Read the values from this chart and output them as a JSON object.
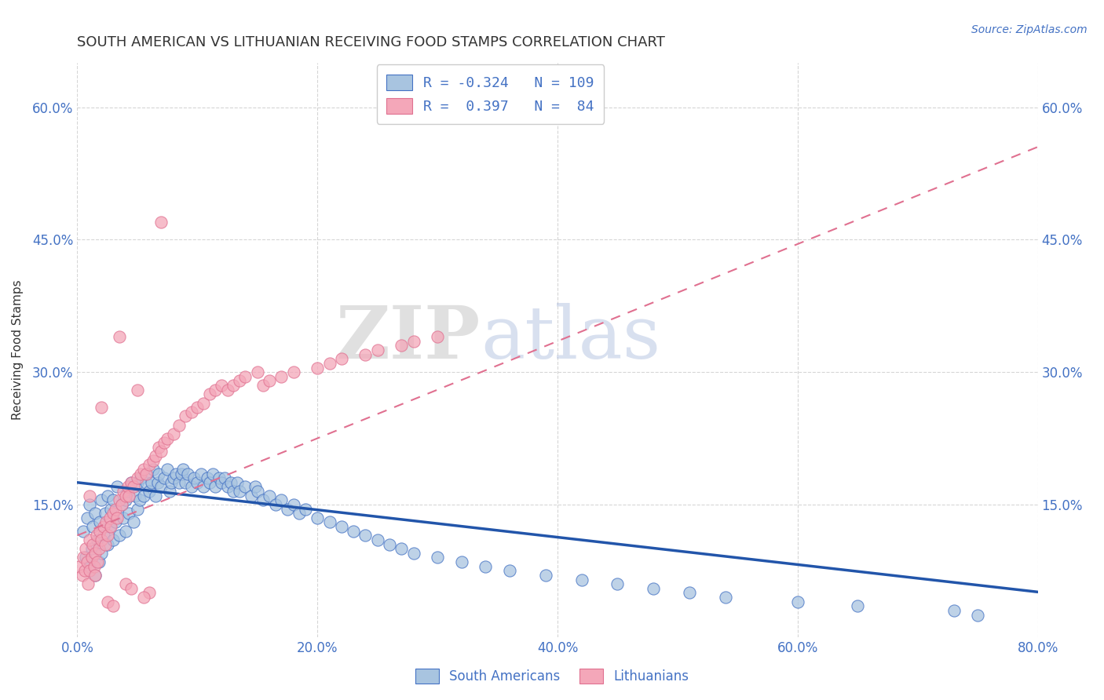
{
  "title": "SOUTH AMERICAN VS LITHUANIAN RECEIVING FOOD STAMPS CORRELATION CHART",
  "source": "Source: ZipAtlas.com",
  "ylabel": "Receiving Food Stamps",
  "ytick_labels": [
    "15.0%",
    "30.0%",
    "45.0%",
    "60.0%"
  ],
  "ytick_values": [
    0.15,
    0.3,
    0.45,
    0.6
  ],
  "xtick_labels": [
    "0.0%",
    "20.0%",
    "40.0%",
    "60.0%",
    "80.0%"
  ],
  "xtick_values": [
    0.0,
    0.2,
    0.4,
    0.6,
    0.8
  ],
  "xmin": 0.0,
  "xmax": 0.8,
  "ymin": 0.0,
  "ymax": 0.65,
  "blue_fill": "#A8C4E0",
  "blue_edge": "#4472C4",
  "pink_fill": "#F4A7B9",
  "pink_edge": "#E07090",
  "blue_line_color": "#2255AA",
  "pink_line_color": "#E07090",
  "axis_label_color": "#4472C4",
  "title_color": "#333333",
  "grid_color": "#CCCCCC",
  "background_color": "#FFFFFF",
  "blue_line_intercept": 0.175,
  "blue_line_slope": -0.155,
  "pink_line_intercept": 0.115,
  "pink_line_slope": 0.55,
  "blue_scatter_x": [
    0.005,
    0.007,
    0.008,
    0.01,
    0.01,
    0.012,
    0.013,
    0.015,
    0.015,
    0.017,
    0.018,
    0.019,
    0.02,
    0.02,
    0.022,
    0.023,
    0.025,
    0.025,
    0.027,
    0.028,
    0.03,
    0.03,
    0.032,
    0.033,
    0.035,
    0.037,
    0.038,
    0.04,
    0.04,
    0.042,
    0.043,
    0.045,
    0.047,
    0.048,
    0.05,
    0.05,
    0.052,
    0.053,
    0.055,
    0.057,
    0.058,
    0.06,
    0.062,
    0.063,
    0.065,
    0.067,
    0.068,
    0.07,
    0.072,
    0.075,
    0.077,
    0.078,
    0.08,
    0.082,
    0.085,
    0.087,
    0.088,
    0.09,
    0.092,
    0.095,
    0.097,
    0.1,
    0.103,
    0.105,
    0.108,
    0.11,
    0.113,
    0.115,
    0.118,
    0.12,
    0.123,
    0.125,
    0.128,
    0.13,
    0.133,
    0.135,
    0.14,
    0.145,
    0.148,
    0.15,
    0.155,
    0.16,
    0.165,
    0.17,
    0.175,
    0.18,
    0.185,
    0.19,
    0.2,
    0.21,
    0.22,
    0.23,
    0.24,
    0.25,
    0.26,
    0.27,
    0.28,
    0.3,
    0.32,
    0.34,
    0.36,
    0.39,
    0.42,
    0.45,
    0.48,
    0.51,
    0.54,
    0.6,
    0.65,
    0.73,
    0.75
  ],
  "blue_scatter_y": [
    0.12,
    0.09,
    0.135,
    0.08,
    0.15,
    0.1,
    0.125,
    0.07,
    0.14,
    0.11,
    0.085,
    0.13,
    0.095,
    0.155,
    0.115,
    0.14,
    0.105,
    0.16,
    0.125,
    0.145,
    0.11,
    0.155,
    0.13,
    0.17,
    0.115,
    0.15,
    0.135,
    0.155,
    0.12,
    0.165,
    0.14,
    0.175,
    0.13,
    0.16,
    0.145,
    0.175,
    0.155,
    0.18,
    0.16,
    0.175,
    0.185,
    0.165,
    0.175,
    0.19,
    0.16,
    0.175,
    0.185,
    0.17,
    0.18,
    0.19,
    0.165,
    0.175,
    0.18,
    0.185,
    0.175,
    0.185,
    0.19,
    0.175,
    0.185,
    0.17,
    0.18,
    0.175,
    0.185,
    0.17,
    0.18,
    0.175,
    0.185,
    0.17,
    0.18,
    0.175,
    0.18,
    0.17,
    0.175,
    0.165,
    0.175,
    0.165,
    0.17,
    0.16,
    0.17,
    0.165,
    0.155,
    0.16,
    0.15,
    0.155,
    0.145,
    0.15,
    0.14,
    0.145,
    0.135,
    0.13,
    0.125,
    0.12,
    0.115,
    0.11,
    0.105,
    0.1,
    0.095,
    0.09,
    0.085,
    0.08,
    0.075,
    0.07,
    0.065,
    0.06,
    0.055,
    0.05,
    0.045,
    0.04,
    0.035,
    0.03,
    0.025
  ],
  "pink_scatter_x": [
    0.002,
    0.004,
    0.005,
    0.006,
    0.007,
    0.008,
    0.009,
    0.01,
    0.01,
    0.012,
    0.013,
    0.014,
    0.015,
    0.016,
    0.017,
    0.018,
    0.019,
    0.02,
    0.022,
    0.023,
    0.024,
    0.025,
    0.027,
    0.028,
    0.03,
    0.032,
    0.033,
    0.035,
    0.037,
    0.038,
    0.04,
    0.042,
    0.043,
    0.045,
    0.047,
    0.05,
    0.053,
    0.055,
    0.057,
    0.06,
    0.063,
    0.065,
    0.068,
    0.07,
    0.072,
    0.075,
    0.08,
    0.085,
    0.09,
    0.095,
    0.1,
    0.105,
    0.11,
    0.115,
    0.12,
    0.125,
    0.13,
    0.135,
    0.14,
    0.15,
    0.155,
    0.16,
    0.17,
    0.18,
    0.2,
    0.21,
    0.22,
    0.24,
    0.25,
    0.27,
    0.28,
    0.3,
    0.07,
    0.02,
    0.035,
    0.01,
    0.05,
    0.015,
    0.025,
    0.04,
    0.06,
    0.03,
    0.045,
    0.055
  ],
  "pink_scatter_y": [
    0.08,
    0.07,
    0.09,
    0.075,
    0.1,
    0.085,
    0.06,
    0.11,
    0.075,
    0.09,
    0.105,
    0.08,
    0.095,
    0.115,
    0.085,
    0.1,
    0.12,
    0.11,
    0.125,
    0.105,
    0.13,
    0.115,
    0.135,
    0.125,
    0.14,
    0.145,
    0.135,
    0.155,
    0.15,
    0.165,
    0.16,
    0.17,
    0.16,
    0.175,
    0.17,
    0.18,
    0.185,
    0.19,
    0.185,
    0.195,
    0.2,
    0.205,
    0.215,
    0.21,
    0.22,
    0.225,
    0.23,
    0.24,
    0.25,
    0.255,
    0.26,
    0.265,
    0.275,
    0.28,
    0.285,
    0.28,
    0.285,
    0.29,
    0.295,
    0.3,
    0.285,
    0.29,
    0.295,
    0.3,
    0.305,
    0.31,
    0.315,
    0.32,
    0.325,
    0.33,
    0.335,
    0.34,
    0.47,
    0.26,
    0.34,
    0.16,
    0.28,
    0.07,
    0.04,
    0.06,
    0.05,
    0.035,
    0.055,
    0.045
  ]
}
